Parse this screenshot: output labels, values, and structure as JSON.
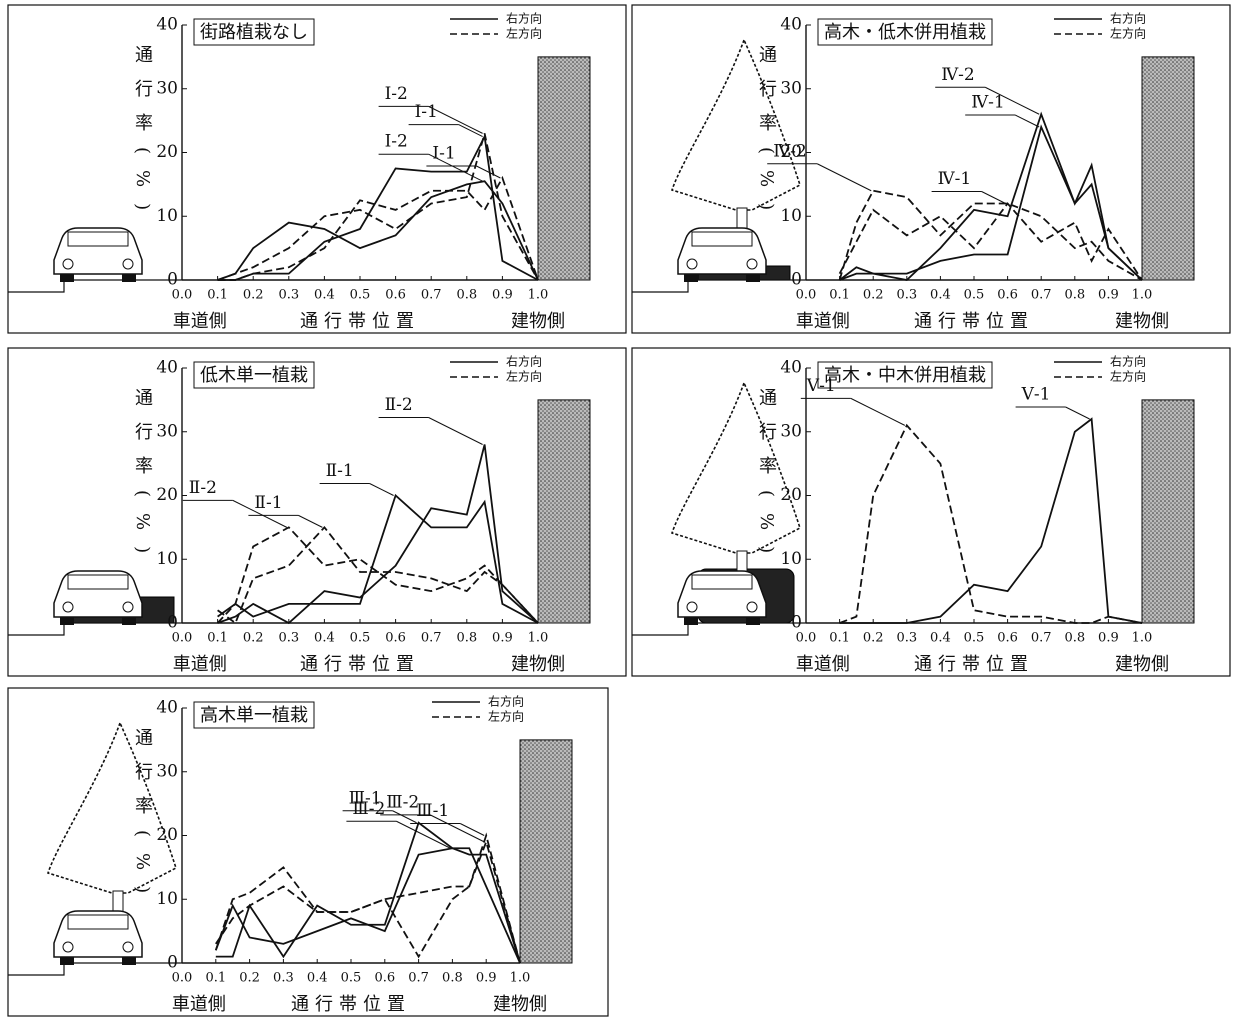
{
  "chart_data": [
    {
      "type": "line",
      "title": "街路植栽なし",
      "ylabel": "通行率(%)",
      "xlabel_left": "車道側",
      "xlabel": "通行帯位置",
      "xlabel_right": "建物側",
      "legend": [
        {
          "label": "右方向",
          "style": "solid"
        },
        {
          "label": "左方向",
          "style": "dashed"
        }
      ],
      "x": [
        0.1,
        0.15,
        0.2,
        0.3,
        0.4,
        0.5,
        0.6,
        0.7,
        0.8,
        0.85,
        0.9,
        1.0
      ],
      "series": [
        {
          "name": "Ⅰ-1",
          "style": "solid",
          "color": "#111",
          "values": [
            0,
            0,
            1,
            1,
            6,
            8,
            17.5,
            17,
            17,
            22.5,
            3,
            0
          ]
        },
        {
          "name": "Ⅰ-2",
          "style": "solid",
          "color": "#111",
          "values": [
            0,
            1,
            5,
            9,
            8,
            5,
            7,
            13,
            15,
            15.5,
            12,
            0
          ]
        },
        {
          "name": "Ⅰ-1",
          "style": "dashed",
          "color": "#111",
          "values": [
            0,
            0,
            1,
            2,
            5,
            12.5,
            11,
            14,
            14,
            11,
            16,
            0
          ]
        },
        {
          "name": "Ⅰ-2",
          "style": "dashed",
          "color": "#111",
          "values": [
            0,
            1,
            2,
            5,
            10,
            11,
            8,
            12,
            13,
            23,
            10,
            0
          ]
        }
      ],
      "xlim": [
        0,
        1
      ],
      "ylim": [
        0,
        40
      ],
      "xticks": [
        {
          "value": 0,
          "label": "0.0"
        },
        0.1,
        0.2,
        0.3,
        0.4,
        0.5,
        0.6,
        0.7,
        0.8,
        0.9,
        {
          "value": 1,
          "label": "1.0"
        }
      ],
      "yticks": [
        0,
        10,
        20,
        30,
        40
      ]
    },
    {
      "type": "line",
      "title": "高木・低木併用植栽",
      "ylabel": "通行率(%)",
      "xlabel_left": "車道側",
      "xlabel": "通行帯位置",
      "xlabel_right": "建物側",
      "legend": [
        {
          "label": "右方向",
          "style": "solid"
        },
        {
          "label": "左方向",
          "style": "dashed"
        }
      ],
      "x": [
        0.1,
        0.15,
        0.2,
        0.3,
        0.4,
        0.5,
        0.6,
        0.7,
        0.8,
        0.85,
        0.9,
        1.0
      ],
      "series": [
        {
          "name": "Ⅳ-1",
          "style": "solid",
          "color": "#111",
          "values": [
            0,
            2,
            1,
            1,
            3,
            4,
            4,
            24,
            12,
            15,
            5,
            0
          ]
        },
        {
          "name": "Ⅳ-2",
          "style": "solid",
          "color": "#111",
          "values": [
            0,
            1,
            1,
            0,
            5,
            11,
            10,
            26,
            12,
            18,
            5,
            0
          ]
        },
        {
          "name": "Ⅳ-1",
          "style": "dashed",
          "color": "#111",
          "values": [
            1,
            6,
            11,
            7,
            10,
            5,
            12,
            6,
            9,
            3,
            8,
            0
          ]
        },
        {
          "name": "Ⅳ-2",
          "style": "dashed",
          "color": "#111",
          "values": [
            0,
            9,
            14,
            13,
            7,
            12,
            12,
            10,
            5,
            6,
            3,
            0
          ]
        }
      ],
      "xlim": [
        0,
        1
      ],
      "ylim": [
        0,
        40
      ],
      "xticks": [
        {
          "value": 0,
          "label": "0.0"
        },
        0.1,
        0.2,
        0.3,
        0.4,
        0.5,
        0.6,
        0.7,
        0.8,
        0.9,
        {
          "value": 1,
          "label": "1.0"
        }
      ],
      "yticks": [
        0,
        10,
        20,
        30,
        40
      ]
    },
    {
      "type": "line",
      "title": "低木単一植栽",
      "ylabel": "通行率(%)",
      "xlabel_left": "車道側",
      "xlabel": "通行帯位置",
      "xlabel_right": "建物側",
      "legend": [
        {
          "label": "右方向",
          "style": "solid"
        },
        {
          "label": "左方向",
          "style": "dashed"
        }
      ],
      "x": [
        0.1,
        0.15,
        0.2,
        0.3,
        0.4,
        0.5,
        0.6,
        0.7,
        0.8,
        0.85,
        0.9,
        1.0
      ],
      "series": [
        {
          "name": "Ⅱ-1",
          "style": "solid",
          "color": "#111",
          "values": [
            1,
            3,
            1,
            3,
            3,
            3,
            20,
            15,
            15,
            19,
            3,
            0
          ]
        },
        {
          "name": "Ⅱ-2",
          "style": "solid",
          "color": "#111",
          "values": [
            0,
            1,
            3,
            0,
            5,
            4,
            9,
            18,
            17,
            28,
            5,
            0
          ]
        },
        {
          "name": "Ⅱ-1",
          "style": "dashed",
          "color": "#111",
          "values": [
            2,
            0,
            7,
            9,
            15,
            8,
            8,
            7,
            5,
            8,
            6,
            0
          ]
        },
        {
          "name": "Ⅱ-2",
          "style": "dashed",
          "color": "#111",
          "values": [
            0,
            3,
            12,
            15,
            9,
            10,
            6,
            5,
            7,
            9,
            6,
            0
          ]
        }
      ],
      "xlim": [
        0,
        1
      ],
      "ylim": [
        0,
        40
      ],
      "xticks": [
        {
          "value": 0,
          "label": "0.0"
        },
        0.1,
        0.2,
        0.3,
        0.4,
        0.5,
        0.6,
        0.7,
        0.8,
        0.9,
        {
          "value": 1,
          "label": "1.0"
        }
      ],
      "yticks": [
        0,
        10,
        20,
        30,
        40
      ]
    },
    {
      "type": "line",
      "title": "高木・中木併用植栽",
      "ylabel": "通行率(%)",
      "xlabel_left": "車道側",
      "xlabel": "通行帯位置",
      "xlabel_right": "建物側",
      "legend": [
        {
          "label": "右方向",
          "style": "solid"
        },
        {
          "label": "左方向",
          "style": "dashed"
        }
      ],
      "x": [
        0.1,
        0.15,
        0.2,
        0.3,
        0.4,
        0.5,
        0.6,
        0.7,
        0.8,
        0.85,
        0.9,
        1.0
      ],
      "series": [
        {
          "name": "Ⅴ-1",
          "style": "solid",
          "color": "#111",
          "values": [
            0,
            0,
            0,
            0,
            1,
            6,
            5,
            12,
            30,
            32,
            1,
            0
          ]
        },
        {
          "name": "Ⅴ-1",
          "style": "dashed",
          "color": "#111",
          "values": [
            0,
            1,
            20,
            31,
            25,
            2,
            1,
            1,
            0,
            0,
            1,
            0
          ]
        }
      ],
      "xlim": [
        0,
        1
      ],
      "ylim": [
        0,
        40
      ],
      "xticks": [
        {
          "value": 0,
          "label": "0.0"
        },
        0.1,
        0.2,
        0.3,
        0.4,
        0.5,
        0.6,
        0.7,
        0.8,
        0.9,
        {
          "value": 1,
          "label": "1.0"
        }
      ],
      "yticks": [
        0,
        10,
        20,
        30,
        40
      ]
    },
    {
      "type": "line",
      "title": "高木単一植栽",
      "ylabel": "通行率(%)",
      "xlabel_left": "車道側",
      "xlabel": "通行帯位置",
      "xlabel_right": "建物側",
      "legend": [
        {
          "label": "右方向",
          "style": "solid"
        },
        {
          "label": "左方向",
          "style": "dashed"
        }
      ],
      "x": [
        0.1,
        0.15,
        0.2,
        0.3,
        0.4,
        0.5,
        0.6,
        0.7,
        0.8,
        0.85,
        0.9,
        1.0
      ],
      "series": [
        {
          "name": "Ⅲ-1",
          "style": "solid",
          "color": "#111",
          "values": [
            1,
            1,
            9,
            1,
            9,
            6,
            6,
            22,
            18,
            17,
            17,
            0
          ]
        },
        {
          "name": "Ⅲ-2",
          "style": "solid",
          "color": "#111",
          "values": [
            2,
            9,
            4,
            3,
            5,
            7,
            5,
            17,
            18,
            18,
            12,
            0
          ]
        },
        {
          "name": "Ⅲ-1",
          "style": "dashed",
          "color": "#111",
          "values": [
            2,
            10,
            11,
            15,
            8,
            8,
            10,
            11,
            12,
            12,
            20,
            0
          ]
        },
        {
          "name": "Ⅲ-2",
          "style": "dashed",
          "color": "#111",
          "values": [
            3,
            7,
            9,
            12,
            8,
            8,
            10,
            1,
            10,
            12,
            19,
            0
          ]
        }
      ],
      "xlim": [
        0,
        1
      ],
      "ylim": [
        0,
        40
      ],
      "xticks": [
        {
          "value": 0,
          "label": "0.0"
        },
        0.1,
        0.2,
        0.3,
        0.4,
        0.5,
        0.6,
        0.7,
        0.8,
        0.9,
        {
          "value": 1,
          "label": "1.0"
        }
      ],
      "yticks": [
        0,
        10,
        20,
        30,
        40
      ]
    }
  ]
}
